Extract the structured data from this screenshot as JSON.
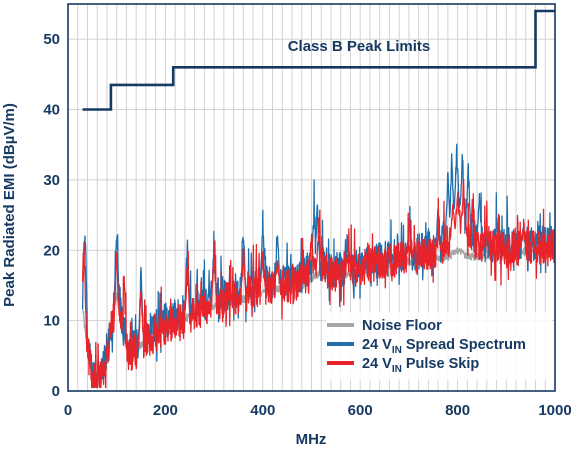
{
  "colors": {
    "limit": "#173a63",
    "noise_floor": "#a6a6a6",
    "spread_spectrum": "#1f6fad",
    "pulse_skip": "#e8232a",
    "grid": "#d2d2d2",
    "text": "#173a63"
  },
  "chart_data": {
    "type": "line",
    "title": "",
    "xlabel": "MHz",
    "ylabel": "Peak Radiated EMI (dBµV/m)",
    "xlim": [
      0,
      1000
    ],
    "ylim": [
      0,
      55
    ],
    "xticks": [
      "0",
      "200",
      "400",
      "600",
      "800",
      "1000"
    ],
    "yticks": [
      "0",
      "10",
      "20",
      "30",
      "40",
      "50"
    ],
    "grid": "vertical gridlines every 20 MHz, horizontal every 10 dBµV/m",
    "legend_position": "bottom-right",
    "annotations": [
      {
        "text": "Class B Peak Limits",
        "x": 560,
        "y": 49
      }
    ],
    "limit_line": {
      "name": "Class B Peak Limits",
      "x": [
        30,
        88,
        88,
        216,
        216,
        960,
        960,
        1000
      ],
      "y": [
        40,
        40,
        43.5,
        43.5,
        46,
        46,
        54,
        54
      ]
    },
    "series": [
      {
        "name": "Noise Floor",
        "base": [
          [
            30,
            12
          ],
          [
            40,
            6
          ],
          [
            50,
            3
          ],
          [
            60,
            2
          ],
          [
            75,
            4
          ],
          [
            90,
            9
          ],
          [
            100,
            14
          ],
          [
            110,
            9
          ],
          [
            125,
            5
          ],
          [
            140,
            6
          ],
          [
            180,
            8
          ],
          [
            200,
            9
          ],
          [
            260,
            11
          ],
          [
            300,
            12
          ],
          [
            360,
            13
          ],
          [
            400,
            14
          ],
          [
            480,
            15
          ],
          [
            520,
            17
          ],
          [
            540,
            16
          ],
          [
            600,
            17
          ],
          [
            700,
            18.5
          ],
          [
            780,
            19
          ],
          [
            800,
            20
          ],
          [
            820,
            19
          ],
          [
            900,
            19.5
          ],
          [
            960,
            20
          ],
          [
            1000,
            20.5
          ]
        ],
        "peaks": []
      },
      {
        "name": "24 VIN Spread Spectrum",
        "base": [
          [
            30,
            14
          ],
          [
            40,
            7
          ],
          [
            50,
            3
          ],
          [
            60,
            2
          ],
          [
            75,
            4
          ],
          [
            90,
            10
          ],
          [
            100,
            16
          ],
          [
            110,
            10
          ],
          [
            125,
            6
          ],
          [
            140,
            7
          ],
          [
            180,
            9
          ],
          [
            200,
            10
          ],
          [
            260,
            12
          ],
          [
            300,
            13.5
          ],
          [
            360,
            14.5
          ],
          [
            400,
            15.5
          ],
          [
            480,
            16.5
          ],
          [
            520,
            19
          ],
          [
            540,
            17
          ],
          [
            600,
            18
          ],
          [
            700,
            19.5
          ],
          [
            760,
            20.5
          ],
          [
            790,
            24
          ],
          [
            800,
            27
          ],
          [
            820,
            23
          ],
          [
            850,
            21
          ],
          [
            900,
            20.5
          ],
          [
            960,
            21
          ],
          [
            1000,
            21
          ]
        ],
        "peaks": [
          [
            35,
            27
          ],
          [
            100,
            23.5
          ],
          [
            150,
            19
          ],
          [
            245,
            23
          ],
          [
            300,
            24
          ],
          [
            360,
            25
          ],
          [
            400,
            26
          ],
          [
            430,
            24
          ],
          [
            505,
            27
          ],
          [
            512,
            28
          ],
          [
            575,
            22
          ],
          [
            700,
            24
          ],
          [
            760,
            27
          ],
          [
            780,
            32
          ],
          [
            788,
            34
          ],
          [
            798,
            36
          ],
          [
            810,
            35
          ],
          [
            822,
            33
          ],
          [
            845,
            29
          ],
          [
            880,
            26
          ],
          [
            935,
            25
          ]
        ]
      },
      {
        "name": "24 VIN Pulse Skip",
        "base": [
          [
            30,
            13
          ],
          [
            40,
            6
          ],
          [
            50,
            2
          ],
          [
            60,
            1
          ],
          [
            75,
            3
          ],
          [
            90,
            9
          ],
          [
            100,
            13
          ],
          [
            110,
            8
          ],
          [
            125,
            5
          ],
          [
            140,
            6
          ],
          [
            180,
            8
          ],
          [
            200,
            9
          ],
          [
            260,
            11
          ],
          [
            300,
            12.5
          ],
          [
            360,
            13.5
          ],
          [
            400,
            14.5
          ],
          [
            480,
            15.5
          ],
          [
            520,
            18
          ],
          [
            540,
            16.5
          ],
          [
            600,
            17.5
          ],
          [
            700,
            19
          ],
          [
            760,
            20
          ],
          [
            790,
            22
          ],
          [
            800,
            24
          ],
          [
            815,
            22
          ],
          [
            850,
            20.5
          ],
          [
            900,
            20
          ],
          [
            960,
            20.5
          ],
          [
            1000,
            20.5
          ]
        ],
        "peaks": [
          [
            33,
            24
          ],
          [
            100,
            21
          ],
          [
            115,
            19
          ],
          [
            150,
            17
          ],
          [
            245,
            20
          ],
          [
            300,
            21
          ],
          [
            360,
            22
          ],
          [
            400,
            22
          ],
          [
            430,
            20
          ],
          [
            500,
            24
          ],
          [
            515,
            25
          ],
          [
            575,
            20
          ],
          [
            700,
            21.5
          ],
          [
            760,
            23
          ],
          [
            790,
            27
          ],
          [
            800,
            29
          ],
          [
            812,
            31
          ],
          [
            830,
            28
          ],
          [
            860,
            24
          ],
          [
            935,
            24
          ]
        ]
      }
    ]
  },
  "legend": [
    {
      "label": "Noise Floor",
      "sub": "",
      "rest": "",
      "color": "#a6a6a6"
    },
    {
      "label": "24 V",
      "sub": "IN",
      "rest": " Spread Spectrum",
      "color": "#1f6fad"
    },
    {
      "label": "24 V",
      "sub": "IN",
      "rest": " Pulse Skip",
      "color": "#e8232a"
    }
  ]
}
